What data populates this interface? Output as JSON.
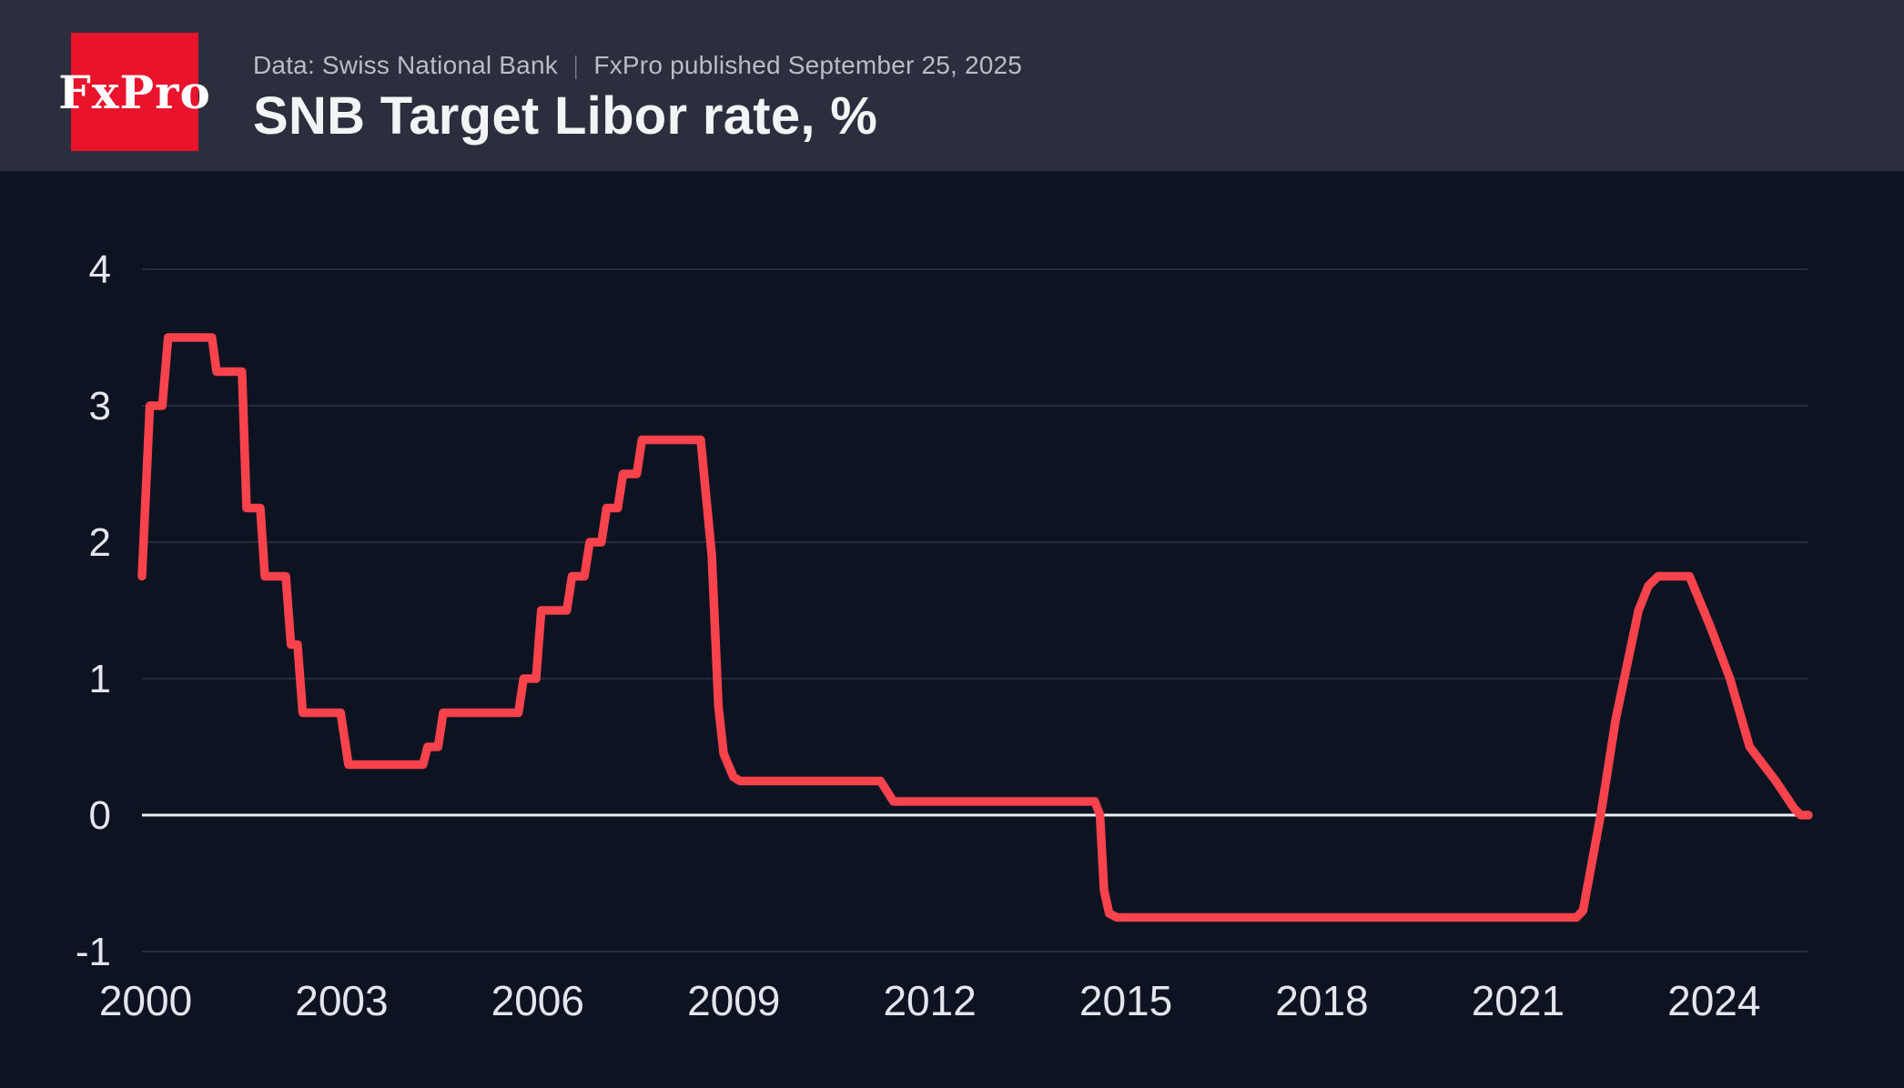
{
  "header": {
    "logo_text": "FxPro",
    "source_prefix": "Data: Swiss National Bank",
    "separator": "|",
    "published_note": "FxPro published September 25, 2025",
    "title": "SNB Target Libor rate, %"
  },
  "colors": {
    "header_bg": "#2b2f3d",
    "chart_bg": "#0e1321",
    "logo_bg": "#e9132c",
    "line": "#f9434c",
    "grid": "rgba(176,188,214,0.15)",
    "zero_line": "#eff1f5",
    "axis_label": "#e3e6ec"
  },
  "chart_data": {
    "type": "line",
    "title": "SNB Target Libor rate, %",
    "unit": "%",
    "grid": "horizontal",
    "legend_position": "none",
    "xlim": [
      2000,
      2025.5
    ],
    "ylim": [
      -1,
      4
    ],
    "x_ticks": [
      "2000",
      "2003",
      "2006",
      "2009",
      "2012",
      "2015",
      "2018",
      "2021",
      "2024"
    ],
    "x_tick_years": [
      2000,
      2003,
      2006,
      2009,
      2012,
      2015,
      2018,
      2021,
      2024
    ],
    "y_ticks": [
      "4",
      "3",
      "2",
      "1",
      "0",
      "-1"
    ],
    "y_tick_values": [
      4,
      3,
      2,
      1,
      0,
      -1
    ],
    "series": [
      {
        "name": "SNB target Libor rate",
        "color": "#f9434c",
        "points": [
          [
            2000.0,
            1.75
          ],
          [
            2000.12,
            3.0
          ],
          [
            2000.31,
            3.0
          ],
          [
            2000.4,
            3.5
          ],
          [
            2001.07,
            3.5
          ],
          [
            2001.14,
            3.25
          ],
          [
            2001.53,
            3.25
          ],
          [
            2001.6,
            2.25
          ],
          [
            2001.81,
            2.25
          ],
          [
            2001.88,
            1.75
          ],
          [
            2002.2,
            1.75
          ],
          [
            2002.28,
            1.25
          ],
          [
            2002.38,
            1.25
          ],
          [
            2002.46,
            0.75
          ],
          [
            2003.04,
            0.75
          ],
          [
            2003.16,
            0.37
          ],
          [
            2004.3,
            0.37
          ],
          [
            2004.37,
            0.5
          ],
          [
            2004.53,
            0.5
          ],
          [
            2004.61,
            0.75
          ],
          [
            2005.76,
            0.75
          ],
          [
            2005.84,
            1.0
          ],
          [
            2006.03,
            1.0
          ],
          [
            2006.11,
            1.5
          ],
          [
            2006.5,
            1.5
          ],
          [
            2006.58,
            1.75
          ],
          [
            2006.77,
            1.75
          ],
          [
            2006.85,
            2.0
          ],
          [
            2007.03,
            2.0
          ],
          [
            2007.11,
            2.25
          ],
          [
            2007.28,
            2.25
          ],
          [
            2007.36,
            2.5
          ],
          [
            2007.57,
            2.5
          ],
          [
            2007.65,
            2.75
          ],
          [
            2008.55,
            2.75
          ],
          [
            2008.72,
            1.9
          ],
          [
            2008.82,
            0.8
          ],
          [
            2008.9,
            0.45
          ],
          [
            2009.05,
            0.28
          ],
          [
            2009.15,
            0.25
          ],
          [
            2011.3,
            0.25
          ],
          [
            2011.5,
            0.1
          ],
          [
            2014.58,
            0.1
          ],
          [
            2014.66,
            0.0
          ],
          [
            2014.72,
            -0.55
          ],
          [
            2014.8,
            -0.72
          ],
          [
            2014.92,
            -0.75
          ],
          [
            2021.95,
            -0.75
          ],
          [
            2022.05,
            -0.7
          ],
          [
            2022.32,
            0.0
          ],
          [
            2022.55,
            0.7
          ],
          [
            2022.9,
            1.5
          ],
          [
            2023.05,
            1.68
          ],
          [
            2023.2,
            1.75
          ],
          [
            2023.68,
            1.75
          ],
          [
            2024.0,
            1.38
          ],
          [
            2024.3,
            1.0
          ],
          [
            2024.6,
            0.5
          ],
          [
            2025.0,
            0.25
          ],
          [
            2025.28,
            0.05
          ],
          [
            2025.38,
            0.0
          ],
          [
            2025.5,
            0.0
          ]
        ]
      }
    ]
  }
}
